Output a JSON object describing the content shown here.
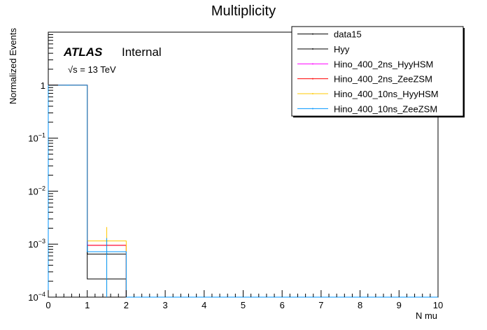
{
  "chart_data": {
    "type": "histogram",
    "title": "Multiplicity",
    "xlabel": "N mu",
    "ylabel": "Normalized Events",
    "xlim": [
      0,
      10
    ],
    "ylim": [
      0.0001,
      10
    ],
    "log_y": true,
    "x_ticks": [
      "0",
      "1",
      "2",
      "3",
      "4",
      "5",
      "6",
      "7",
      "8",
      "9",
      "10"
    ],
    "y_tick_values": [
      0.0001,
      0.001,
      0.01,
      0.1,
      1
    ],
    "y_ticks": [
      {
        "base": "10",
        "exp": "−4"
      },
      {
        "base": "10",
        "exp": "−3"
      },
      {
        "base": "10",
        "exp": "−2"
      },
      {
        "base": "10",
        "exp": "−1"
      },
      {
        "base": "1",
        "exp": ""
      }
    ],
    "atlas_label": "ATLAS",
    "atlas_status": "Internal",
    "energy_label": "√s = 13 TeV",
    "bin_edges": [
      0,
      1,
      2,
      3,
      4,
      5,
      6,
      7,
      8,
      9,
      10
    ],
    "legend_position": "top-right",
    "series": [
      {
        "name": "data15",
        "color": "#000000",
        "values": [
          0.9993,
          0.00065,
          0.0001,
          0.0001,
          0.0001,
          0.0001,
          0.0001,
          0.0001,
          0.0001,
          0.0001
        ]
      },
      {
        "name": "Hyy",
        "color": "#000000",
        "values": [
          0.9998,
          0.00022,
          0.0001,
          0.0001,
          0.0001,
          0.0001,
          0.0001,
          0.0001,
          0.0001,
          0.0001
        ]
      },
      {
        "name": "Hino_400_2ns_HyyHSM",
        "color": "#ff00ff",
        "values": [
          0.9991,
          0.00095,
          0.0001,
          0.0001,
          0.0001,
          0.0001,
          0.0001,
          0.0001,
          0.0001,
          0.0001
        ]
      },
      {
        "name": "Hino_400_2ns_ZeeZSM",
        "color": "#ff0000",
        "values": [
          0.9991,
          0.00095,
          0.0001,
          0.0001,
          0.0001,
          0.0001,
          0.0001,
          0.0001,
          0.0001,
          0.0001
        ]
      },
      {
        "name": "Hino_400_10ns_HyyHSM",
        "color": "#ffc800",
        "values": [
          0.9989,
          0.00115,
          0.0001,
          0.0001,
          0.0001,
          0.0001,
          0.0001,
          0.0001,
          0.0001,
          0.0001
        ]
      },
      {
        "name": "Hino_400_10ns_ZeeZSM",
        "color": "#0096ff",
        "values": [
          0.9993,
          0.00072,
          0.0001,
          0.0001,
          0.0001,
          0.0001,
          0.0001,
          0.0001,
          0.0001,
          0.0001
        ]
      }
    ]
  }
}
